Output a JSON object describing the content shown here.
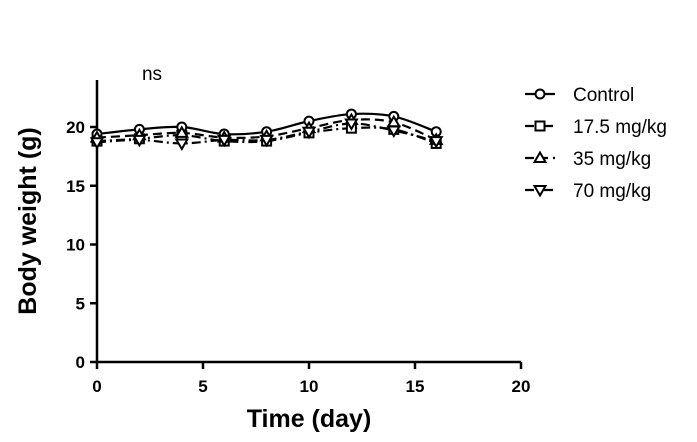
{
  "chart_data": {
    "type": "line",
    "xlabel": "Time (day)",
    "ylabel": "Body weight (g)",
    "xlim": [
      0,
      20
    ],
    "ylim": [
      0,
      24
    ],
    "xticks": [
      0,
      5,
      10,
      15,
      20
    ],
    "yticks": [
      0,
      5,
      10,
      15,
      20
    ],
    "grid": false,
    "legend_position": "right",
    "annotation": "ns",
    "x": [
      0,
      2,
      4,
      6,
      8,
      10,
      12,
      14,
      16
    ],
    "series": [
      {
        "name": "Control",
        "marker": "circle",
        "dash": "solid",
        "values": [
          19.4,
          19.8,
          20.0,
          19.4,
          19.6,
          20.5,
          21.1,
          20.9,
          19.6
        ]
      },
      {
        "name": "17.5 mg/kg",
        "marker": "square",
        "dash": "dash-dot",
        "values": [
          18.8,
          19.0,
          19.3,
          18.8,
          18.8,
          19.5,
          19.9,
          19.8,
          18.6
        ]
      },
      {
        "name": "35 mg/kg",
        "marker": "triangle-up",
        "dash": "dashed",
        "values": [
          19.1,
          19.3,
          19.5,
          19.1,
          19.2,
          19.9,
          20.6,
          20.4,
          18.9
        ]
      },
      {
        "name": "70 mg/kg",
        "marker": "triangle-down",
        "dash": "dash-dot",
        "values": [
          18.7,
          18.9,
          18.6,
          18.9,
          18.9,
          19.6,
          20.3,
          19.7,
          18.8
        ]
      }
    ]
  }
}
